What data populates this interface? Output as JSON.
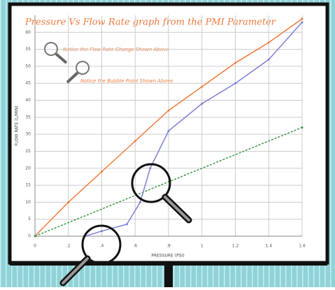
{
  "chart_data": {
    "type": "line",
    "title": "Pressure Vs Flow Rate graph from the PMI Parameter",
    "annotations": [
      "Notice the Flow Rate Change Shown Above",
      "Notice the Bubble Point Shown Above"
    ],
    "x_label": "PRESSURE (PSI)",
    "y_label": "FLOW RATE (L/MIN)",
    "xlim": [
      0,
      1.6
    ],
    "ylim": [
      0,
      65
    ],
    "xticks": [
      0,
      {
        "value": 0.2,
        "label": ".2"
      },
      {
        "value": 0.4,
        "label": ".4"
      },
      {
        "value": 0.6,
        "label": ".6"
      },
      {
        "value": 0.8,
        "label": ".8"
      },
      1,
      1.2,
      1.4,
      1.6
    ],
    "yticks": [
      0,
      5,
      10,
      15,
      20,
      25,
      30,
      35,
      40,
      45,
      50,
      55,
      60
    ],
    "grid": true,
    "series": [
      {
        "color": "#f07a3c",
        "x": [
          0,
          0.2,
          0.4,
          0.6,
          0.8,
          1,
          1.2,
          1.4,
          1.6
        ],
        "values": [
          0,
          10,
          19,
          28,
          37,
          44,
          51,
          57,
          64
        ]
      },
      {
        "color": "#3a9a4a",
        "x": [
          0,
          1.6
        ],
        "values": [
          0,
          32
        ]
      },
      {
        "color": "#7b7fd4",
        "x": [
          0.3,
          0.4,
          0.55,
          0.63,
          0.69,
          0.8,
          1,
          1.2,
          1.4,
          1.6
        ],
        "values": [
          0,
          1.5,
          3.5,
          10,
          20,
          31,
          39,
          45,
          52,
          63
        ]
      }
    ]
  }
}
